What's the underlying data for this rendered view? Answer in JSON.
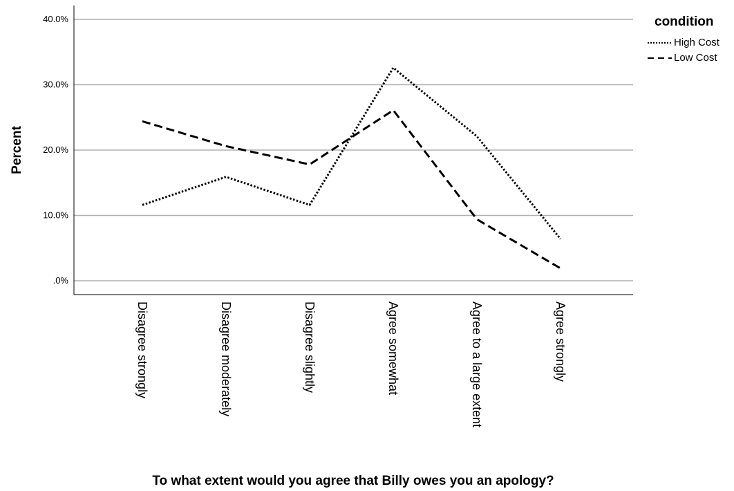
{
  "chart_data": {
    "type": "line",
    "xlabel": "To what extent would you agree that Billy owes you an apology?",
    "ylabel": "Percent",
    "categories": [
      "Disagree strongly",
      "Disagree moderately",
      "Disagree slightly",
      "Agree somewhat",
      "Agree to a large extent",
      "Agree strongly"
    ],
    "ylim": [
      0,
      40
    ],
    "yticks": [
      {
        "value": 0,
        "label": ".0%"
      },
      {
        "value": 10,
        "label": "10.0%"
      },
      {
        "value": 20,
        "label": "20.0%"
      },
      {
        "value": 30,
        "label": "30.0%"
      },
      {
        "value": 40,
        "label": "40.0%"
      }
    ],
    "grid": "horizontal",
    "legend": {
      "title": "condition",
      "placement": "top-right"
    },
    "series": [
      {
        "name": "High Cost",
        "style": "dotted",
        "color": "#000000",
        "values": [
          11.6,
          15.9,
          11.6,
          32.6,
          22.1,
          6.4
        ]
      },
      {
        "name": "Low Cost",
        "style": "dashed",
        "color": "#000000",
        "values": [
          24.4,
          20.6,
          17.8,
          26.1,
          9.4,
          1.9
        ]
      }
    ]
  }
}
